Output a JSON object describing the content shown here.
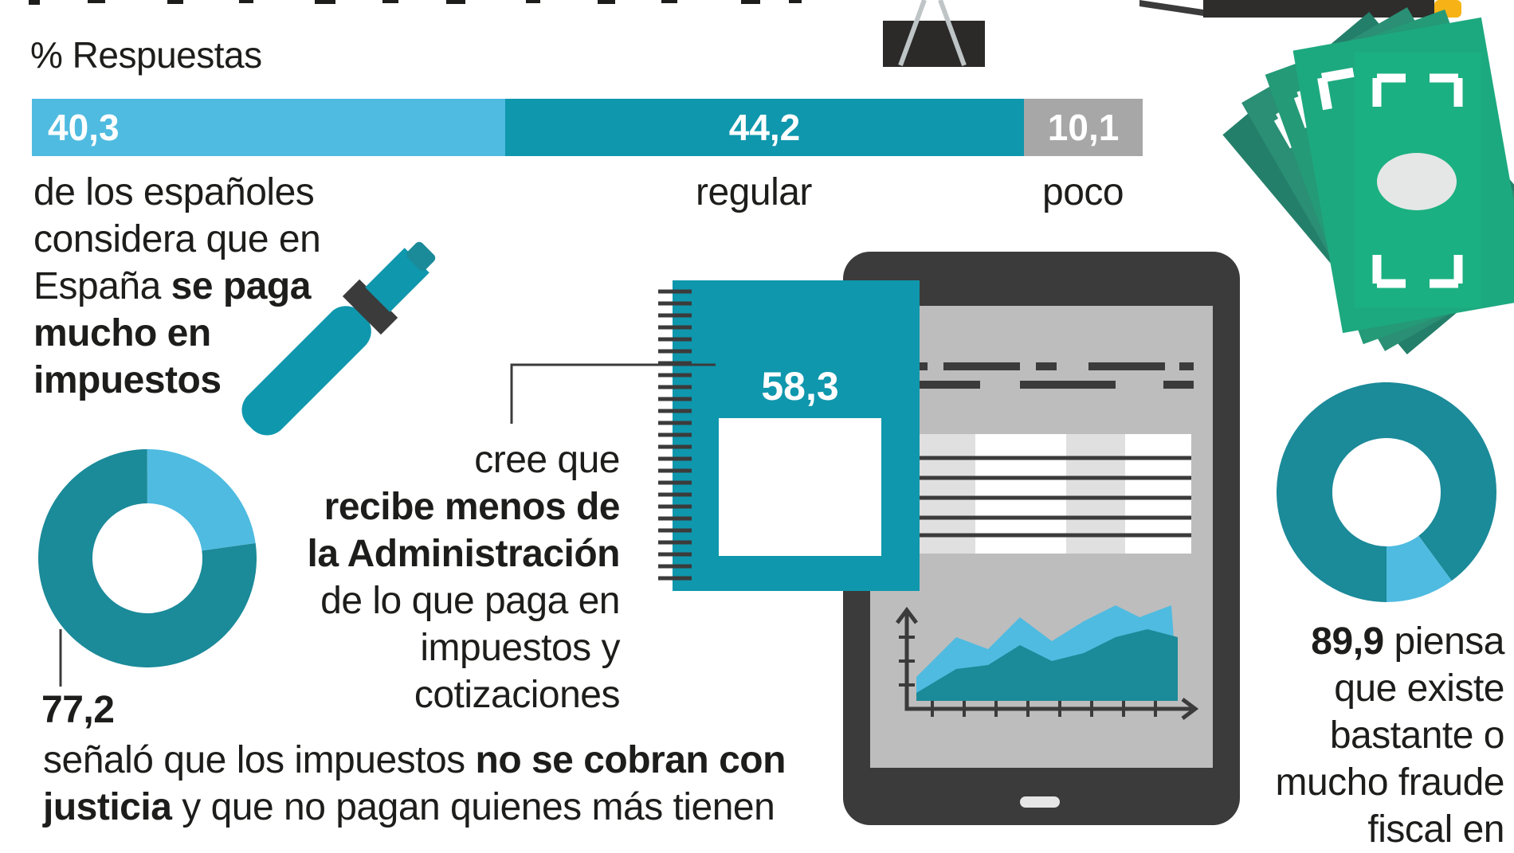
{
  "colors": {
    "light_blue": "#4fbbe0",
    "teal": "#0f97ad",
    "grey": "#a7a7a7",
    "dark_teal": "#1b8a99",
    "money_green": "#2a9f79",
    "money_light": "#1fb386",
    "tablet_dark": "#3c3b3b",
    "screen_grey": "#bdbdbd"
  },
  "icons": [
    "binder-clip-icon",
    "pencil-icon",
    "marker-pen-icon",
    "money-bills-icon",
    "tablet-icon",
    "notebook-icon"
  ],
  "chart_data": [
    {
      "type": "bar",
      "orientation": "horizontal-stacked",
      "title": "% Respuestas",
      "series": [
        {
          "name": "se paga mucho en impuestos",
          "value": 40.3,
          "display": "40,3",
          "color": "#4fbbe0"
        },
        {
          "name": "regular",
          "value": 44.2,
          "display": "44,2",
          "color": "#0f97ad"
        },
        {
          "name": "poco",
          "value": 10.1,
          "display": "10,1",
          "color": "#a7a7a7"
        }
      ],
      "total": 100
    },
    {
      "type": "pie",
      "variant": "donut",
      "label": "77,2",
      "slices": [
        {
          "value": 77.2,
          "color": "#1b8a99"
        },
        {
          "value": 22.8,
          "color": "#4fbbe0"
        }
      ]
    },
    {
      "type": "bar",
      "variant": "notebook-fill",
      "label": "58,3",
      "value": 58.3
    },
    {
      "type": "pie",
      "variant": "donut",
      "label": "89,9",
      "slices": [
        {
          "value": 89.9,
          "color": "#1b8a99"
        },
        {
          "value": 10.1,
          "color": "#4fbbe0"
        }
      ]
    }
  ],
  "texts": {
    "respuestas": "% Respuestas",
    "mucho_l1": "de los españoles",
    "mucho_l2": "considera que en",
    "mucho_l3a": "España ",
    "mucho_l3b": "se paga",
    "mucho_l4": "mucho en",
    "mucho_l5": "impuestos",
    "regular": "regular",
    "poco": "poco",
    "recibe_l1": "cree que",
    "recibe_l2": "recibe menos de",
    "recibe_l3": "la Administración",
    "recibe_l4": "de lo que paga en",
    "recibe_l5": "impuestos y",
    "recibe_l6": "cotizaciones",
    "justicia_value": "77,2",
    "justicia_l1a": "señaló que los impuestos ",
    "justicia_l1b": "no se cobran con",
    "justicia_l2a": "justicia",
    "justicia_l2b": " y que no pagan quienes más tienen",
    "fraude_value": "89,9",
    "fraude_l1": " piensa",
    "fraude_l2": "que existe",
    "fraude_l3": "bastante o",
    "fraude_l4": "mucho fraude",
    "fraude_l5": "fiscal en"
  }
}
